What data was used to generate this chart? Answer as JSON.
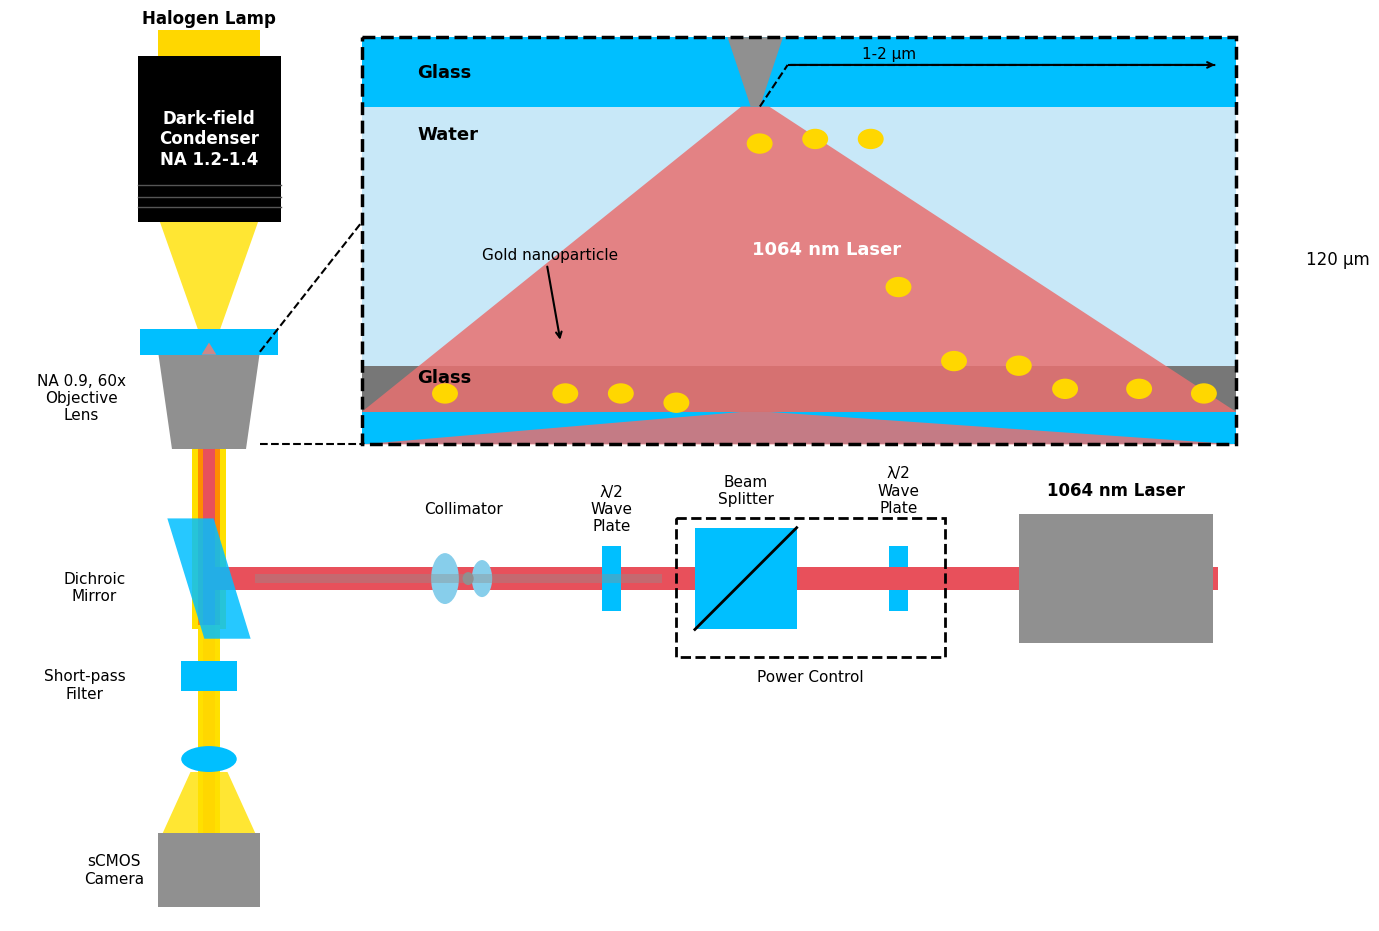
{
  "colors": {
    "cyan": "#00BFFF",
    "light_cyan": "#87CEEB",
    "red_laser": "#E8505B",
    "red_laser_beam": "#E8505B",
    "yellow": "#FFD700",
    "yellow_beam": "#FFE000",
    "orange_beam": "#FF8C00",
    "gold": "#FFD700",
    "gray": "#909090",
    "dark_gray": "#555555",
    "black": "#000000",
    "white": "#FFFFFF",
    "glass_top": "#00BFFF",
    "water": "#C8E8F8",
    "glass_bottom": "#808080",
    "pink_laser": "#E87070"
  },
  "texts": {
    "halogen_lamp": "Halogen Lamp",
    "dark_field": "Dark-field\nCondenser\nNA 1.2-1.4",
    "objective": "NA 0.9, 60x\nObjective\nLens",
    "dichroic": "Dichroic\nMirror",
    "shortpass": "Short-pass\nFilter",
    "scmos": "sCMOS\nCamera",
    "collimator": "Collimator",
    "waveplate1": "λ/2\nWave\nPlate",
    "beamsplitter": "Beam\nSplitter",
    "waveplate2": "λ/2\nWave\nPlate",
    "power_control": "Power Control",
    "laser_label": "1064 nm Laser",
    "laser_beam": "1064 nm Laser",
    "glass_top": "Glass",
    "water": "Water",
    "glass_bottom": "Glass",
    "gold_np": "Gold nanoparticle",
    "dim_1_2": "1-2 μm",
    "dim_120": "120 μm"
  }
}
